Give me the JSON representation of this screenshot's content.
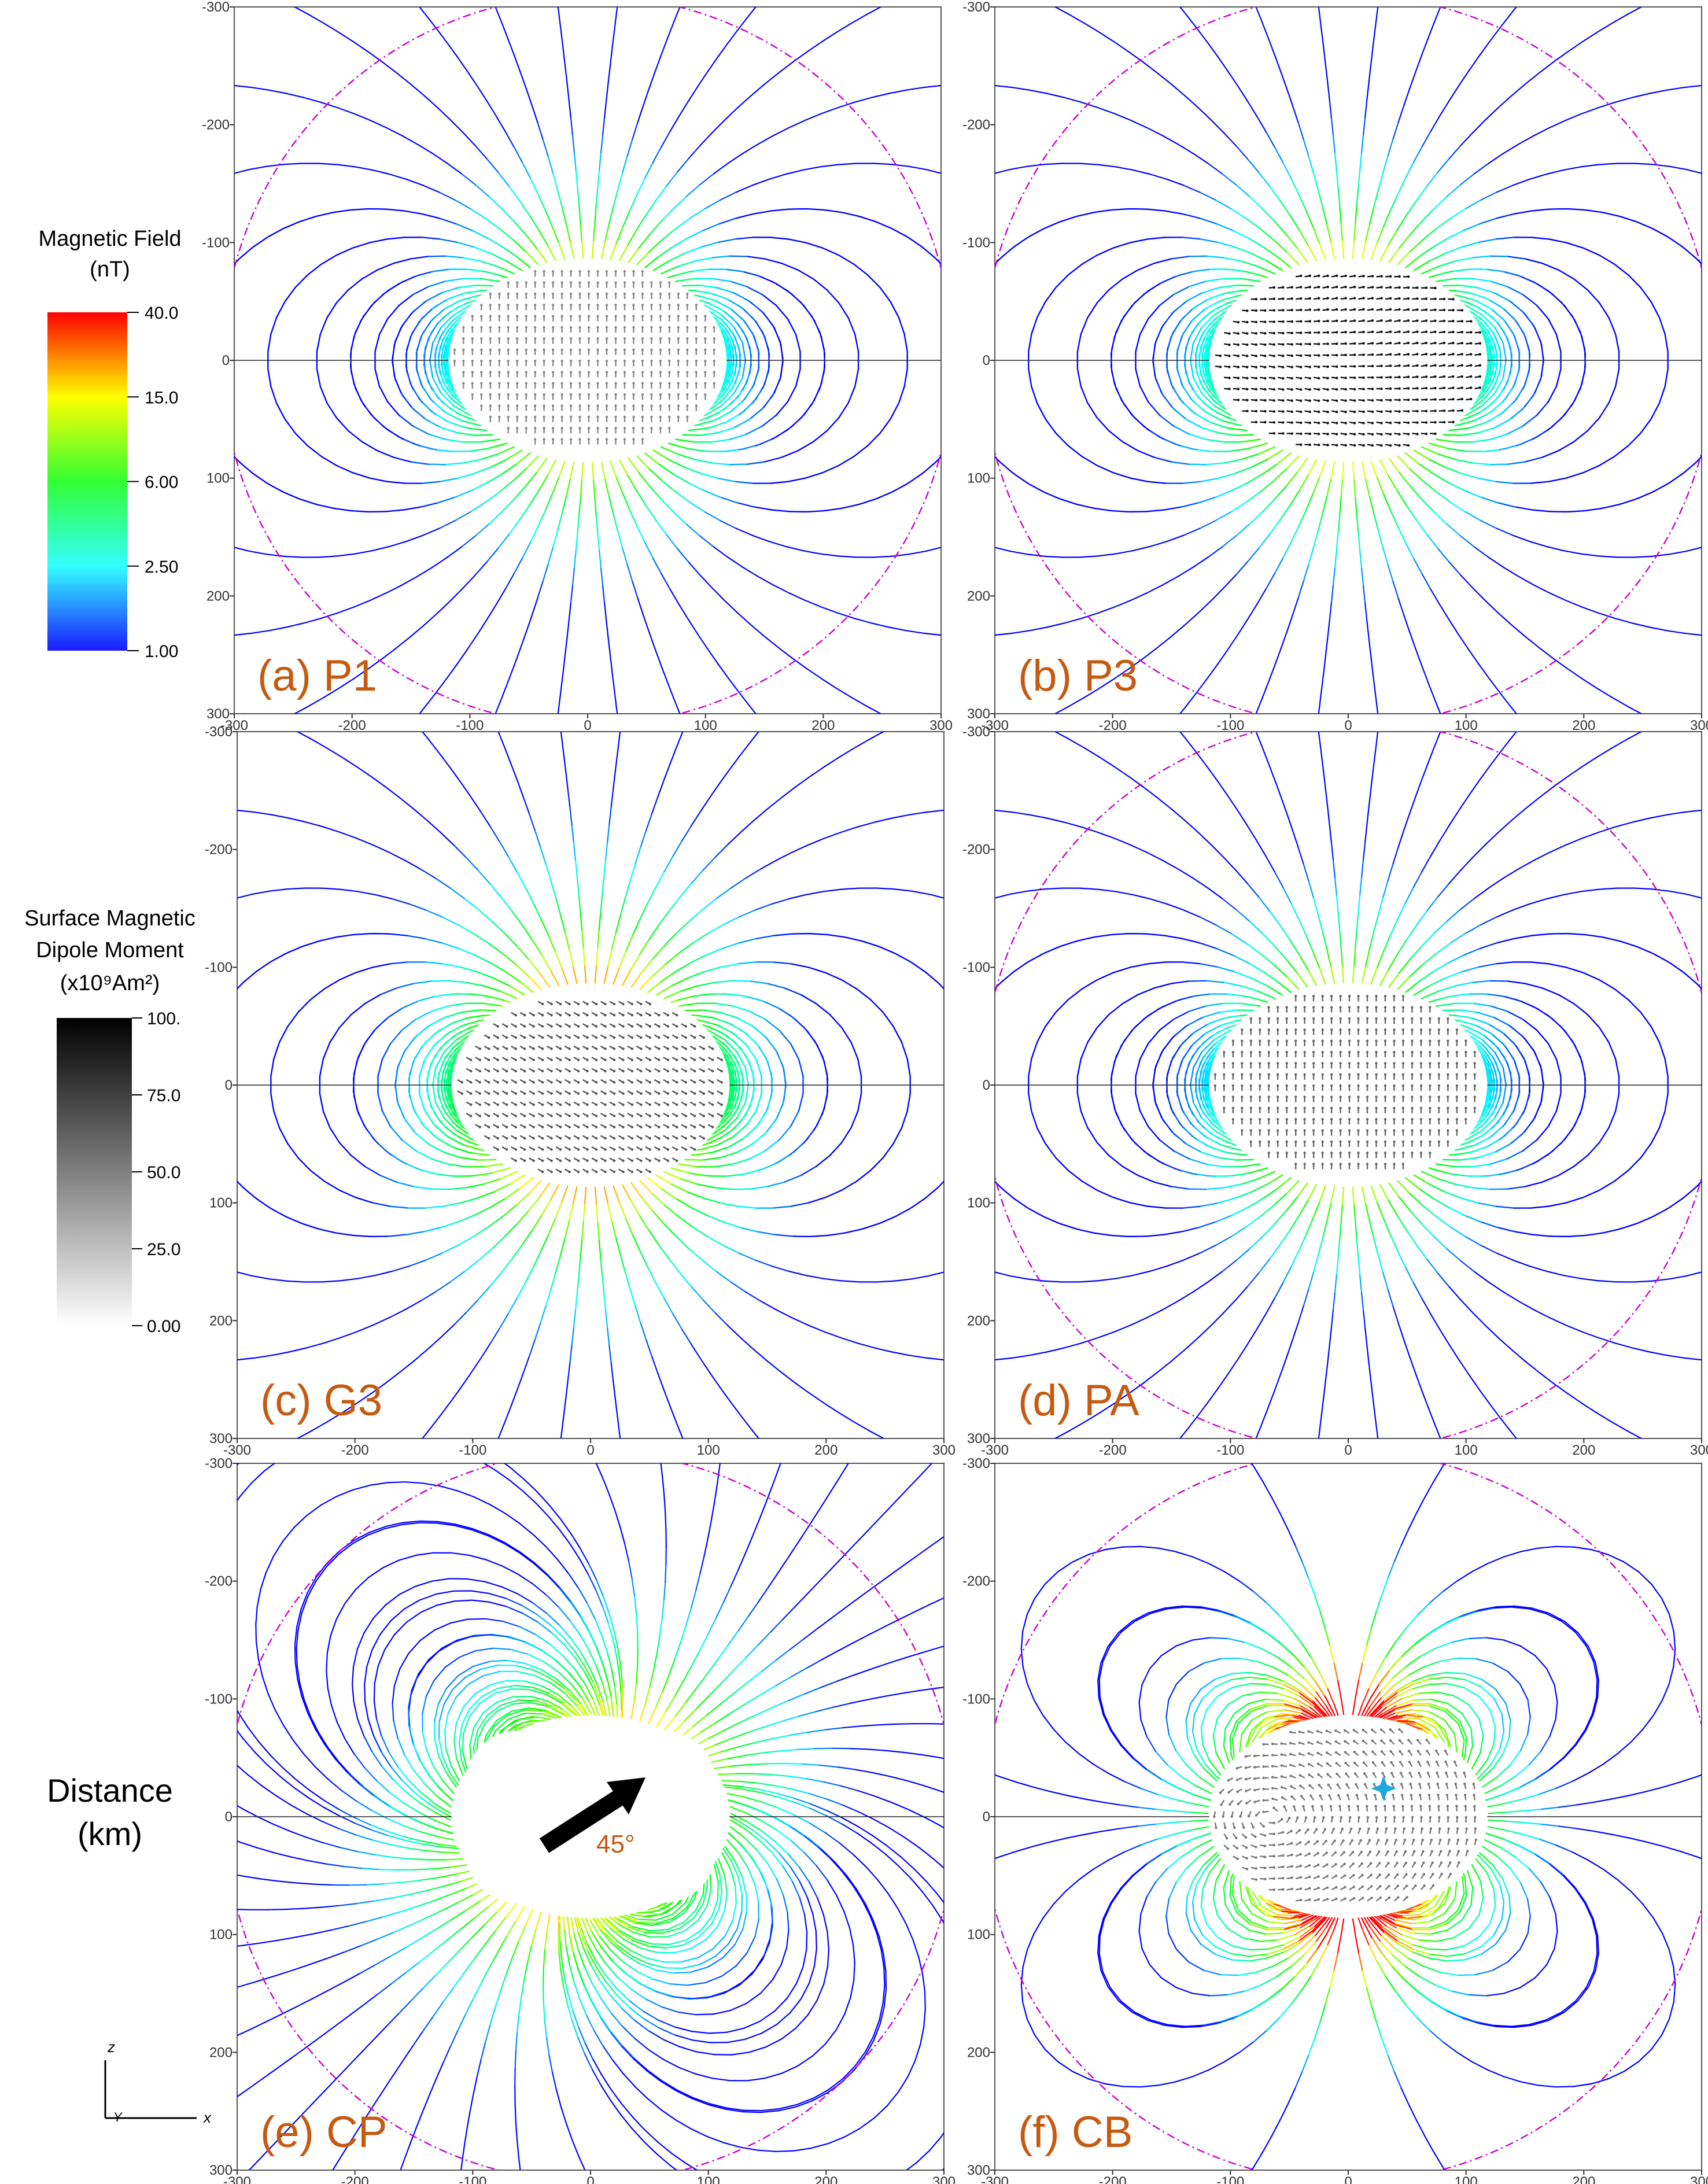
{
  "figure": {
    "panels": [
      {
        "id": "a",
        "label": "(a) P1",
        "kind": "dipole",
        "vectors": "vertical",
        "vector_shade": "#888888",
        "scale": 0.75,
        "strength": 0.35
      },
      {
        "id": "b",
        "label": "(b) P3",
        "kind": "dipole",
        "vectors": "horizontal",
        "vector_shade": "#111111",
        "scale": 0.75,
        "strength": 0.45
      },
      {
        "id": "c",
        "label": "(c) G3",
        "kind": "dipole",
        "vectors": "tilted",
        "vector_shade": "#555555",
        "scale": 0.75,
        "strength": 0.85
      },
      {
        "id": "d",
        "label": "(d) PA",
        "kind": "dipole",
        "vectors": "vertical",
        "vector_shade": "#666666",
        "scale": 0.75,
        "strength": 0.3
      },
      {
        "id": "e",
        "label": "(e) CP",
        "kind": "tilted",
        "vectors": "none",
        "vector_shade": "#000000",
        "scale": 0.75,
        "strength": 0.8
      },
      {
        "id": "f",
        "label": "(f) CB",
        "kind": "quadrupole",
        "vectors": "swirl",
        "vector_shade": "#777777",
        "scale": 0.75,
        "strength": 0.55
      }
    ],
    "axis_ticks": [
      "-300",
      "-200",
      "-100",
      "0",
      "100",
      "200",
      "300"
    ],
    "field_colorbar": {
      "title_line1": "Magnetic Field",
      "title_line2": "(nT)",
      "ticks": [
        "40.0",
        "15.0",
        "6.00",
        "2.50",
        "1.00"
      ],
      "colors": [
        "#ff0000",
        "#ffff00",
        "#33ff33",
        "#33ffff",
        "#1a1aff"
      ]
    },
    "moment_colorbar": {
      "title_line1": "Surface Magnetic",
      "title_line2": "Dipole Moment",
      "title_line3": "(x10⁹Am²)",
      "ticks": [
        "100.",
        "75.0",
        "50.0",
        "25.0",
        "0.00"
      ],
      "colors": [
        "#000000",
        "#ffffff"
      ]
    },
    "distance_label_line1": "Distance",
    "distance_label_line2": "(km)",
    "axis_triad": {
      "z": "z",
      "y": "Y",
      "x": "x"
    },
    "arrow_angle_label": "45°",
    "dashed_circle_color": "#cc00cc"
  }
}
